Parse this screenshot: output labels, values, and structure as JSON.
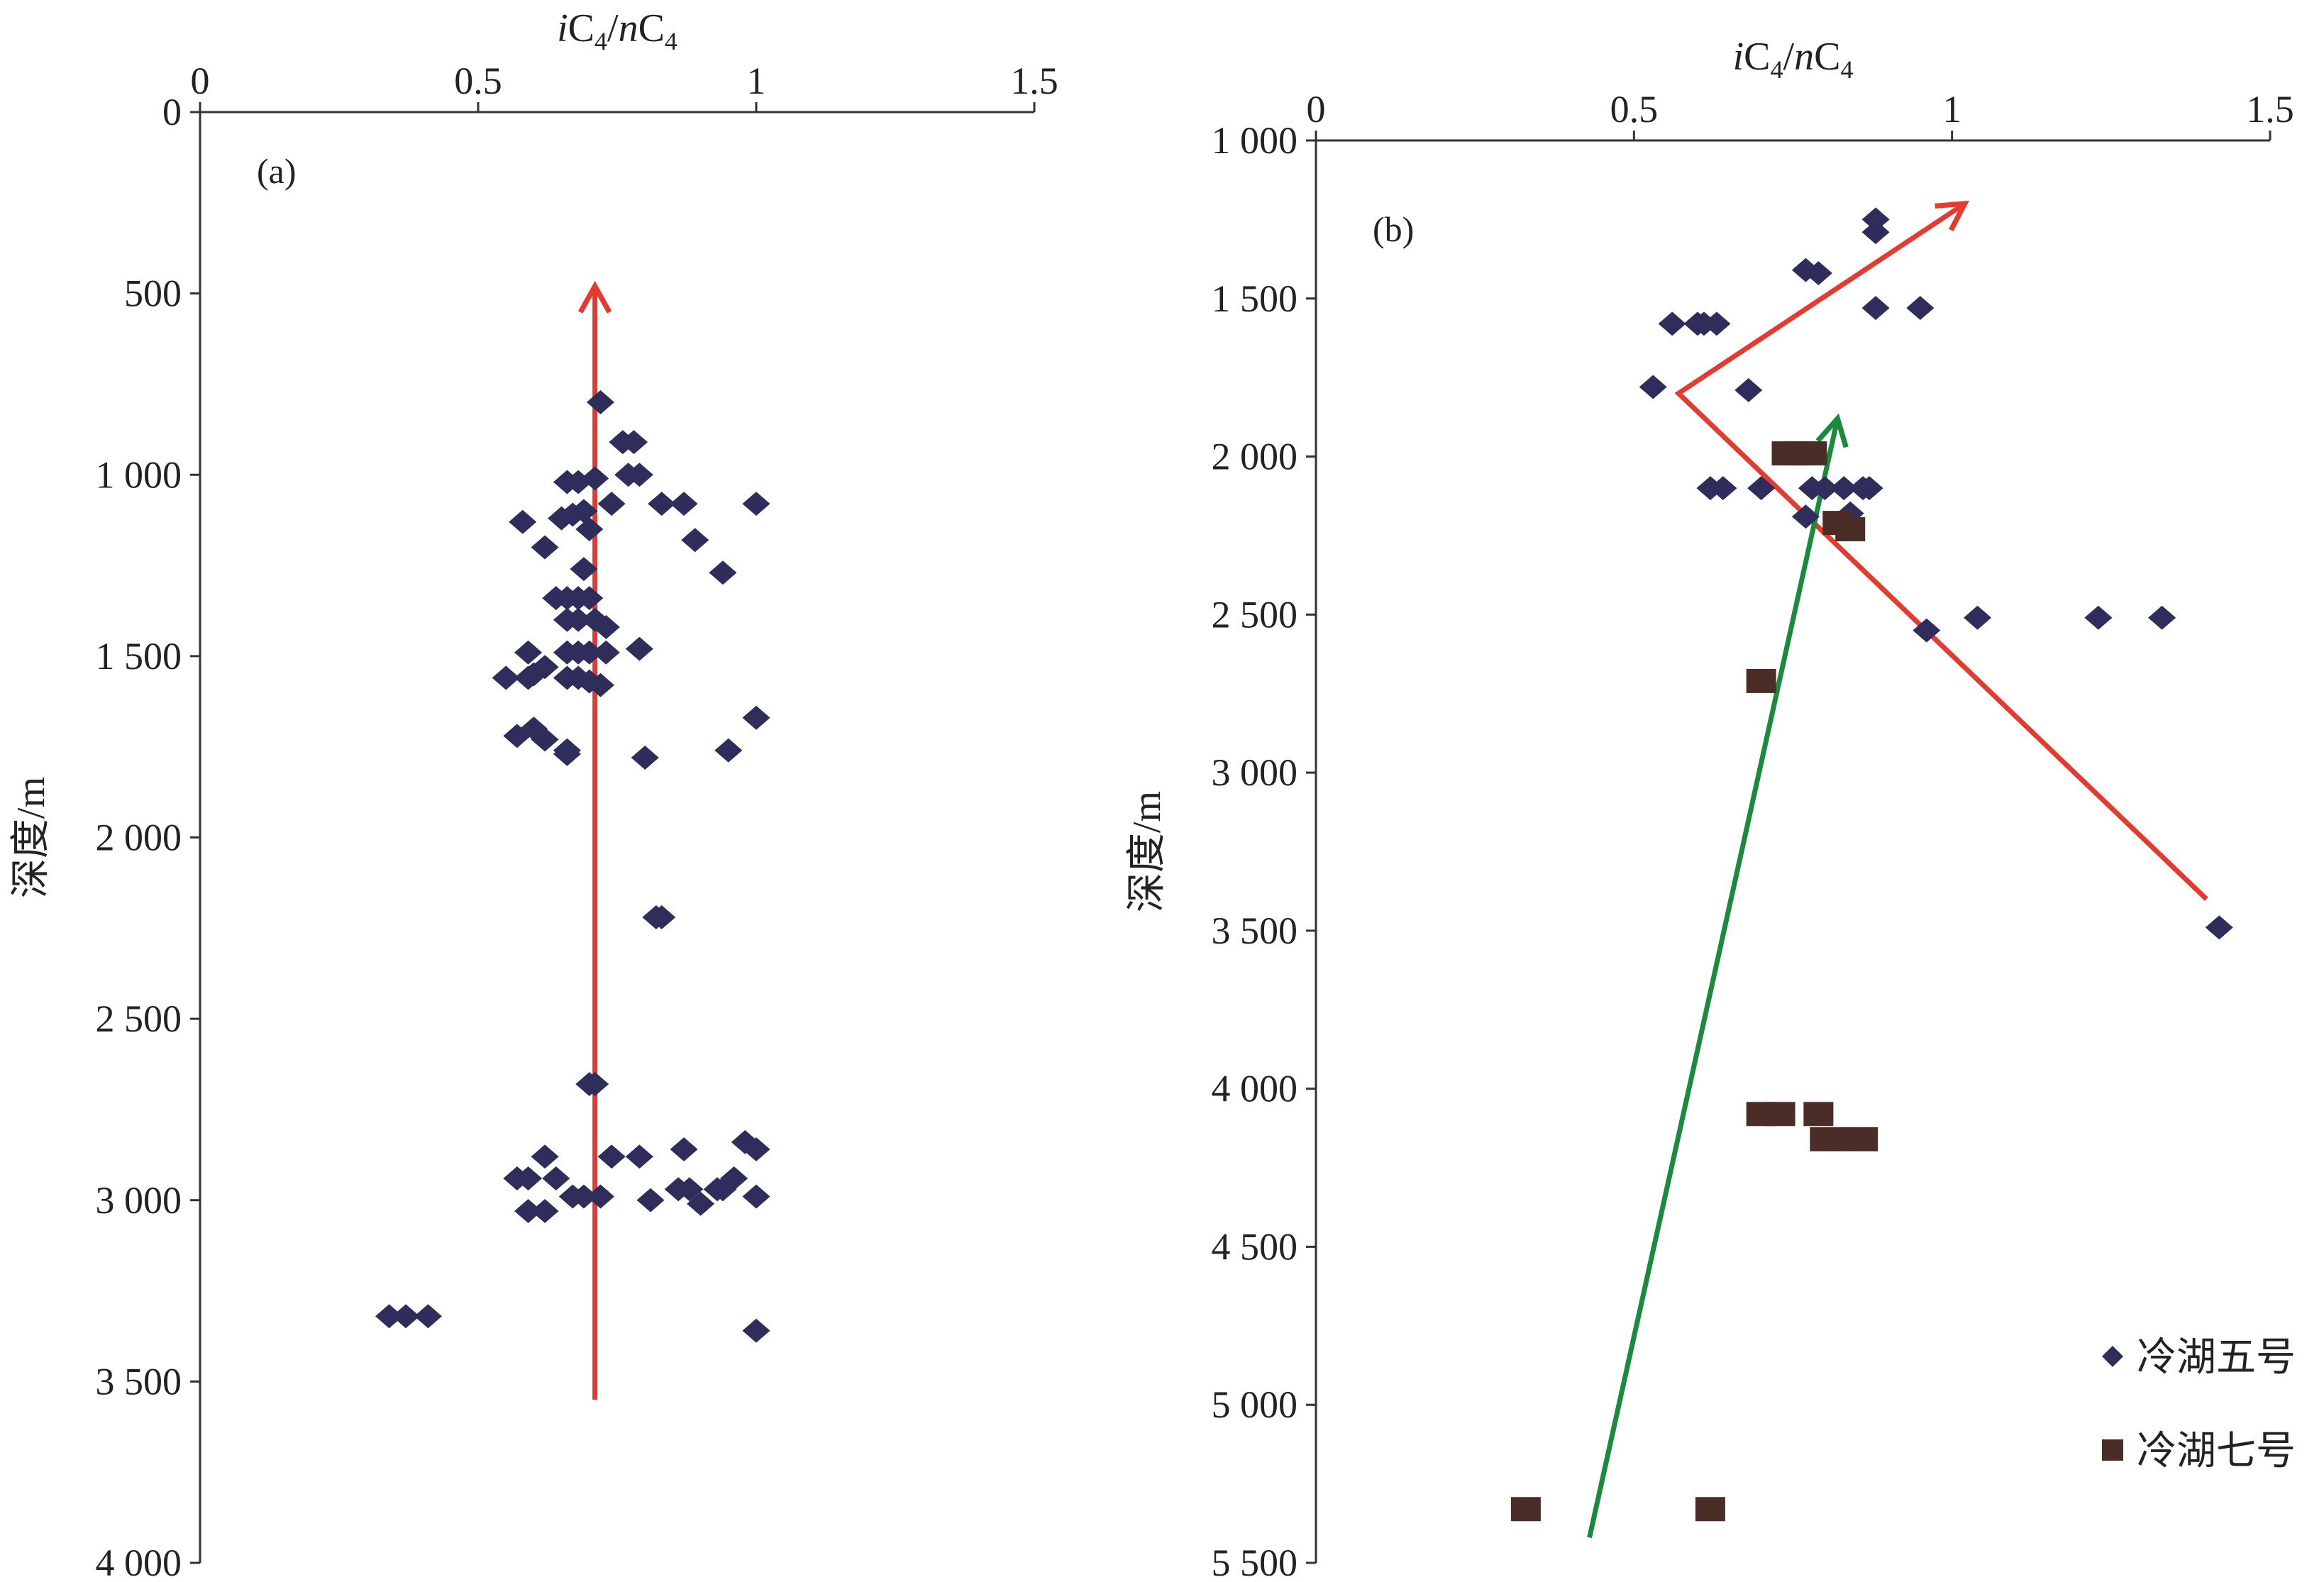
{
  "chart_data": [
    {
      "type": "scatter",
      "panel_label": "(a)",
      "xlabel_parts": [
        "i",
        "C",
        "4",
        "/",
        "n",
        "C",
        "4"
      ],
      "ylabel": "深度/m",
      "xlim": [
        0,
        1.5
      ],
      "ylim": [
        0,
        4000
      ],
      "y_reversed": true,
      "x_axis_position": "top",
      "x_ticks": [
        0,
        0.5,
        1,
        1.5
      ],
      "x_tick_labels": [
        "0",
        "0.5",
        "1",
        "1.5"
      ],
      "y_ticks": [
        0,
        500,
        1000,
        1500,
        2000,
        2500,
        3000,
        3500,
        4000
      ],
      "y_tick_labels": [
        "0",
        "500",
        "1 000",
        "1 500",
        "2 000",
        "2 500",
        "3 000",
        "3 500",
        "4 000"
      ],
      "grid": false,
      "series": [
        {
          "marker": "diamond",
          "color": "#2e2d5c",
          "points": [
            [
              0.72,
              800
            ],
            [
              0.76,
              910
            ],
            [
              0.78,
              910
            ],
            [
              0.77,
              1000
            ],
            [
              0.79,
              1000
            ],
            [
              0.66,
              1020
            ],
            [
              0.68,
              1020
            ],
            [
              0.71,
              1010
            ],
            [
              0.74,
              1080
            ],
            [
              0.83,
              1080
            ],
            [
              0.87,
              1080
            ],
            [
              1.0,
              1080
            ],
            [
              0.58,
              1130
            ],
            [
              0.65,
              1120
            ],
            [
              0.67,
              1110
            ],
            [
              0.69,
              1100
            ],
            [
              0.7,
              1150
            ],
            [
              0.89,
              1180
            ],
            [
              0.62,
              1200
            ],
            [
              0.69,
              1260
            ],
            [
              0.94,
              1270
            ],
            [
              0.64,
              1340
            ],
            [
              0.66,
              1340
            ],
            [
              0.68,
              1340
            ],
            [
              0.7,
              1340
            ],
            [
              0.66,
              1400
            ],
            [
              0.68,
              1400
            ],
            [
              0.71,
              1400
            ],
            [
              0.73,
              1420
            ],
            [
              0.59,
              1490
            ],
            [
              0.66,
              1490
            ],
            [
              0.68,
              1490
            ],
            [
              0.7,
              1490
            ],
            [
              0.73,
              1490
            ],
            [
              0.79,
              1480
            ],
            [
              0.62,
              1530
            ],
            [
              0.6,
              1550
            ],
            [
              0.59,
              1560
            ],
            [
              0.55,
              1560
            ],
            [
              0.66,
              1560
            ],
            [
              0.68,
              1560
            ],
            [
              0.7,
              1570
            ],
            [
              0.72,
              1580
            ],
            [
              1.0,
              1670
            ],
            [
              0.6,
              1700
            ],
            [
              0.57,
              1720
            ],
            [
              0.62,
              1730
            ],
            [
              0.66,
              1760
            ],
            [
              0.66,
              1770
            ],
            [
              0.95,
              1760
            ],
            [
              0.8,
              1780
            ],
            [
              0.82,
              2220
            ],
            [
              0.83,
              2220
            ],
            [
              0.7,
              2680
            ],
            [
              0.71,
              2680
            ],
            [
              0.98,
              2840
            ],
            [
              1.0,
              2860
            ],
            [
              0.87,
              2860
            ],
            [
              0.62,
              2880
            ],
            [
              0.74,
              2880
            ],
            [
              0.79,
              2880
            ],
            [
              0.57,
              2940
            ],
            [
              0.59,
              2940
            ],
            [
              0.64,
              2940
            ],
            [
              0.96,
              2940
            ],
            [
              0.86,
              2970
            ],
            [
              0.88,
              2970
            ],
            [
              0.93,
              2970
            ],
            [
              0.94,
              2970
            ],
            [
              1.0,
              2990
            ],
            [
              0.67,
              2990
            ],
            [
              0.69,
              2990
            ],
            [
              0.72,
              2990
            ],
            [
              0.81,
              3000
            ],
            [
              0.9,
              3010
            ],
            [
              0.59,
              3030
            ],
            [
              0.62,
              3030
            ],
            [
              0.34,
              3320
            ],
            [
              0.37,
              3320
            ],
            [
              0.41,
              3320
            ],
            [
              1.0,
              3360
            ]
          ]
        }
      ],
      "arrows": [
        {
          "color": "#e53a2f",
          "from": [
            0.71,
            3550
          ],
          "to": [
            0.71,
            480
          ]
        }
      ]
    },
    {
      "type": "scatter",
      "panel_label": "(b)",
      "xlabel_parts": [
        "i",
        "C",
        "4",
        "/",
        "n",
        "C",
        "4"
      ],
      "ylabel": "深度/m",
      "xlim": [
        0,
        1.5
      ],
      "ylim": [
        1000,
        5500
      ],
      "y_reversed": true,
      "x_axis_position": "top",
      "x_ticks": [
        0,
        0.5,
        1,
        1.5
      ],
      "x_tick_labels": [
        "0",
        "0.5",
        "1",
        "1.5"
      ],
      "y_ticks": [
        1000,
        1500,
        2000,
        2500,
        3000,
        3500,
        4000,
        4500,
        5000,
        5500
      ],
      "y_tick_labels": [
        "1 000",
        "1 500",
        "2 000",
        "2 500",
        "3 000",
        "3 500",
        "4 000",
        "4 500",
        "5 000",
        "5 500"
      ],
      "grid": false,
      "legend_position": "bottom-right",
      "series": [
        {
          "name": "冷湖五号",
          "marker": "diamond",
          "color": "#2e2d5c",
          "points": [
            [
              0.88,
              1250
            ],
            [
              0.88,
              1290
            ],
            [
              0.77,
              1410
            ],
            [
              0.79,
              1420
            ],
            [
              0.88,
              1530
            ],
            [
              0.95,
              1530
            ],
            [
              0.56,
              1580
            ],
            [
              0.6,
              1580
            ],
            [
              0.61,
              1580
            ],
            [
              0.63,
              1580
            ],
            [
              0.53,
              1780
            ],
            [
              0.68,
              1790
            ],
            [
              0.62,
              2100
            ],
            [
              0.64,
              2100
            ],
            [
              0.7,
              2100
            ],
            [
              0.78,
              2100
            ],
            [
              0.8,
              2100
            ],
            [
              0.83,
              2100
            ],
            [
              0.86,
              2100
            ],
            [
              0.87,
              2100
            ],
            [
              0.77,
              2190
            ],
            [
              0.84,
              2180
            ],
            [
              0.96,
              2550
            ],
            [
              1.04,
              2510
            ],
            [
              1.23,
              2510
            ],
            [
              1.33,
              2510
            ],
            [
              1.42,
              3490
            ]
          ]
        },
        {
          "name": "冷湖七号",
          "marker": "square",
          "color": "#4a2d27",
          "points": [
            [
              0.74,
              1990
            ],
            [
              0.76,
              1990
            ],
            [
              0.78,
              1990
            ],
            [
              0.82,
              2210
            ],
            [
              0.84,
              2230
            ],
            [
              0.7,
              2710
            ],
            [
              0.7,
              4080
            ],
            [
              0.73,
              4080
            ],
            [
              0.79,
              4080
            ],
            [
              0.8,
              4160
            ],
            [
              0.83,
              4160
            ],
            [
              0.86,
              4160
            ],
            [
              0.33,
              5330
            ],
            [
              0.62,
              5330
            ]
          ]
        }
      ],
      "arrows": [
        {
          "color": "#e53a2f",
          "polyline": [
            [
              1.4,
              3400
            ],
            [
              0.57,
              1800
            ],
            [
              1.02,
              1200
            ]
          ]
        },
        {
          "color": "#1a8a3c",
          "from": [
            0.43,
            5420
          ],
          "to": [
            0.82,
            1880
          ]
        }
      ]
    }
  ]
}
